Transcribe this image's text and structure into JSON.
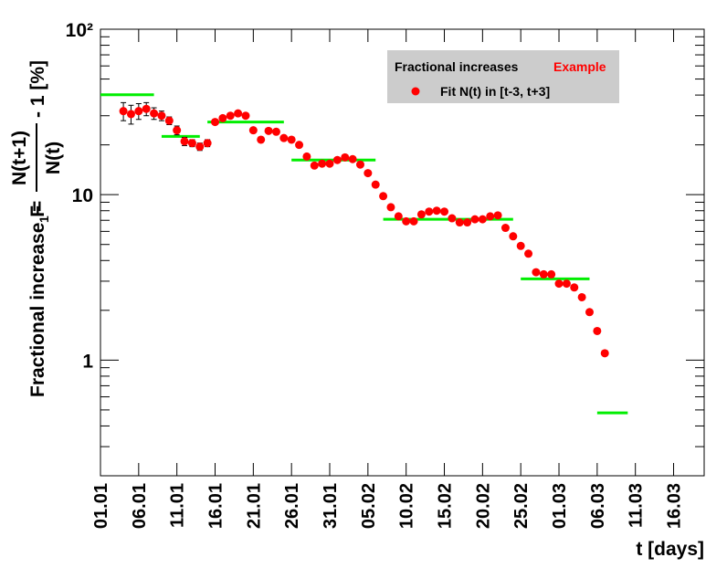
{
  "chart_data": {
    "type": "scatter",
    "y_label": {
      "text": "Fractional increase F",
      "sub": "1",
      "eq": "=",
      "numerator": "N(t+1)",
      "denominator": "N(t)",
      "tail": "- 1 [%]"
    },
    "x_label": "t [days]",
    "legend_title": "Fractional increases",
    "legend_tag": "Example",
    "log_y": true,
    "xlim": [
      0,
      79
    ],
    "ylim": [
      0.2,
      100
    ],
    "xticks": [
      {
        "value": 0,
        "label": "01.01"
      },
      {
        "value": 5,
        "label": "06.01"
      },
      {
        "value": 10,
        "label": "11.01"
      },
      {
        "value": 15,
        "label": "16.01"
      },
      {
        "value": 20,
        "label": "21.01"
      },
      {
        "value": 25,
        "label": "26.01"
      },
      {
        "value": 30,
        "label": "31.01"
      },
      {
        "value": 35,
        "label": "05.02"
      },
      {
        "value": 40,
        "label": "10.02"
      },
      {
        "value": 45,
        "label": "15.02"
      },
      {
        "value": 50,
        "label": "20.02"
      },
      {
        "value": 55,
        "label": "25.02"
      },
      {
        "value": 60,
        "label": "01.03"
      },
      {
        "value": 65,
        "label": "06.03"
      },
      {
        "value": 70,
        "label": "11.03"
      },
      {
        "value": 75,
        "label": "16.03"
      }
    ],
    "yticks": [
      1,
      10,
      {
        "value": 100,
        "label": "10²"
      }
    ],
    "yminorticks": [
      0.2,
      0.3,
      0.4,
      0.5,
      0.6,
      0.7,
      0.8,
      0.9,
      2,
      3,
      4,
      5,
      6,
      7,
      8,
      9,
      20,
      30,
      40,
      50,
      60,
      70,
      80,
      90
    ],
    "series": [
      {
        "name": "Fit N(t) in [t-3, t+3]",
        "color": "#ff0000",
        "x": [
          3,
          4,
          5,
          6,
          7,
          8,
          9,
          10,
          11,
          12,
          13,
          14,
          15,
          16,
          17,
          18,
          19,
          20,
          21,
          22,
          23,
          24,
          25,
          26,
          27,
          28,
          29,
          30,
          31,
          32,
          33,
          34,
          35,
          36,
          37,
          38,
          39,
          40,
          41,
          42,
          43,
          44,
          45,
          46,
          47,
          48,
          49,
          50,
          51,
          52,
          53,
          54,
          55,
          56,
          57,
          58,
          59,
          60,
          61,
          62,
          63,
          64,
          65,
          66
        ],
        "values": [
          32,
          30.7,
          32,
          33,
          31,
          30,
          28,
          24.5,
          21,
          20.5,
          19.5,
          20.5,
          27.5,
          29,
          30,
          31,
          30,
          24.5,
          21.5,
          24.3,
          24,
          22,
          21.5,
          20,
          17,
          15,
          15.4,
          15.4,
          16.2,
          16.8,
          16.4,
          15.2,
          13.5,
          11.5,
          9.8,
          8.4,
          7.4,
          6.9,
          6.9,
          7.6,
          7.9,
          8,
          7.9,
          7.2,
          6.8,
          6.8,
          7.1,
          7.1,
          7.4,
          7.5,
          6.3,
          5.6,
          4.9,
          4.4,
          3.4,
          3.3,
          3.3,
          2.9,
          2.9,
          2.75,
          2.4,
          1.95,
          1.5,
          1.1
        ],
        "errors": [
          4,
          4,
          3.5,
          3,
          2.5,
          2,
          1.5,
          1.5,
          1.2,
          1,
          1,
          1,
          null,
          null,
          null,
          null,
          null,
          null,
          null,
          null,
          null,
          null,
          null,
          null,
          null,
          null,
          null,
          null,
          null,
          null,
          null,
          null,
          null,
          null,
          null,
          null,
          null,
          null,
          null,
          null,
          null,
          null,
          null,
          null,
          null,
          null,
          null,
          null,
          null,
          null,
          null,
          null,
          null,
          null,
          null,
          null,
          null,
          null,
          null,
          null,
          null,
          null,
          null,
          null
        ]
      }
    ],
    "steps": {
      "color": "#00ee00",
      "x0": [
        0,
        8,
        14,
        25,
        37,
        55,
        65
      ],
      "x1": [
        7,
        13,
        24,
        36,
        54,
        64,
        69
      ],
      "values": [
        40.2,
        22.5,
        27.5,
        16.2,
        7.1,
        3.1,
        0.48
      ]
    }
  }
}
